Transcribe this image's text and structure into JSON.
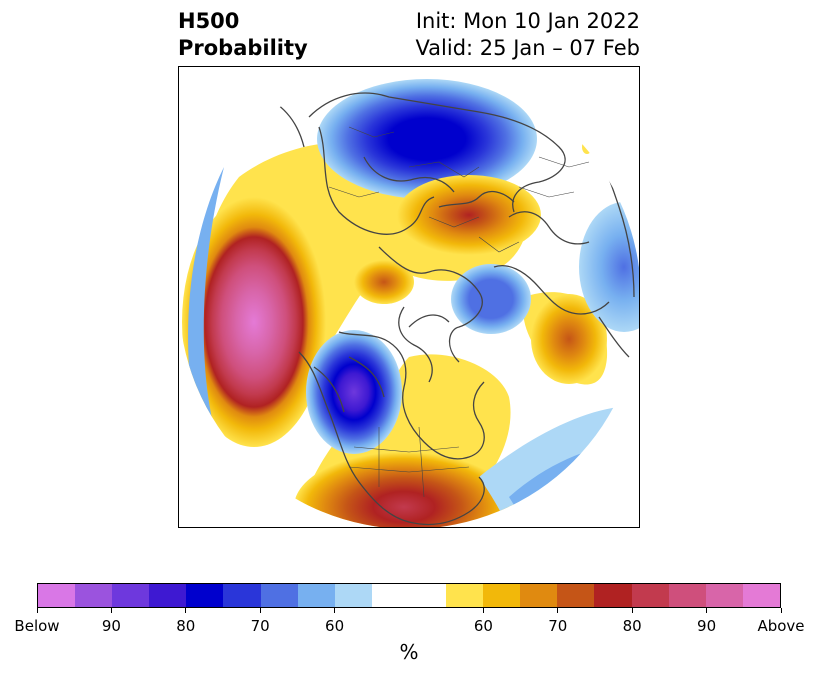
{
  "title": {
    "left_line1": "H500",
    "left_line2": "Probability",
    "right_line1": "Init: Mon 10 Jan 2022",
    "right_line2": "Valid: 25 Jan – 07 Feb"
  },
  "colorbar": {
    "unit": "%",
    "colors": [
      "#d977e6",
      "#9b53de",
      "#6e38dd",
      "#3e19d2",
      "#0000cd",
      "#2a36d9",
      "#4f70e3",
      "#77b0f0",
      "#add8f6",
      "#ffffff",
      "#ffffff",
      "#ffe34d",
      "#f2b80a",
      "#e08a10",
      "#c55517",
      "#b02222",
      "#c23a4e",
      "#cf4f7c",
      "#d865a9",
      "#e47ad6"
    ],
    "tick_labels": [
      "Below",
      "90",
      "80",
      "70",
      "60",
      "60",
      "70",
      "80",
      "90",
      "Above"
    ]
  },
  "colors": {
    "below_deep": "#0000cd",
    "above_deep": "#b02222",
    "above_max": "#e47ad6",
    "coastline": "#444444"
  }
}
